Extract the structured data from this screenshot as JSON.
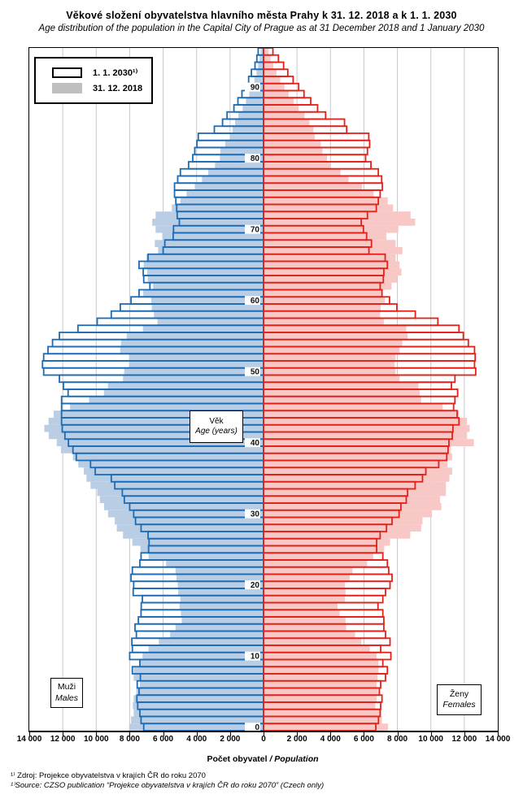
{
  "title": "Věkové složení obyvatelstva hlavního města Prahy k 31. 12. 2018 a k 1. 1. 2030",
  "subtitle": "Age distribution of the population in the Capital City of Prague as at 31 December 2018 and 1 January 2030",
  "legend": {
    "items": [
      {
        "label": "1. 1. 2030¹⁾",
        "swatch": "outline"
      },
      {
        "label": "31. 12. 2018",
        "swatch": "fill"
      }
    ]
  },
  "side_labels": {
    "males_cs": "Muži",
    "males_en": "Males",
    "females_cs": "Ženy",
    "females_en": "Females"
  },
  "center_label": {
    "cs": "Věk",
    "en": "Age (years)"
  },
  "x_axis": {
    "ticks": [
      "14 000",
      "12 000",
      "10 000",
      "8 000",
      "6 000",
      "4 000",
      "2 000",
      "0",
      "2 000",
      "4 000",
      "6 000",
      "8 000",
      "10 000",
      "12 000",
      "14 000"
    ],
    "label_cs": "Počet obyvatel ",
    "label_en": "/ Population"
  },
  "y_axis": {
    "ticks": [
      "0",
      "10",
      "20",
      "30",
      "40",
      "50",
      "60",
      "70",
      "80",
      "90"
    ]
  },
  "footnotes": [
    "¹⁾ Zdroj: Projekce obyvatelstva v krajích ČR do roku 2070",
    "¹⁾Source: CZSO publication “Projekce obyvatelstva v krajích ČR do roku 2070” (Czech only)"
  ],
  "colors": {
    "male_stroke": "#1b6cb5",
    "male_fill": "#b9cde5",
    "female_stroke": "#e32119",
    "female_fill": "#f7c8c6",
    "grid": "#c9c9c9",
    "axis": "#000000",
    "legend_fill_swatch": "#bfbfbf"
  },
  "chart_data": {
    "type": "bar",
    "subtype": "population-pyramid",
    "title": "Věkové složení obyvatelstva hlavního města Prahy k 31. 12. 2018 a k 1. 1. 2030",
    "xlabel": "Počet obyvatel / Population",
    "ylabel": "Věk / Age (years)",
    "xlim": [
      -14000,
      14000
    ],
    "grid": true,
    "age_range": [
      0,
      95
    ],
    "ages_note": "index of each value = single year of age, 0 to 95",
    "series": [
      {
        "name": "males_2018",
        "side": "left",
        "style": "fill",
        "values": [
          8030,
          7920,
          7760,
          7810,
          7760,
          7600,
          7390,
          7760,
          7760,
          7360,
          7230,
          6870,
          6260,
          5580,
          5260,
          4890,
          4940,
          5020,
          4970,
          5100,
          5130,
          5210,
          5260,
          5820,
          6870,
          7360,
          7840,
          8400,
          8770,
          8890,
          9290,
          9530,
          9780,
          9940,
          10340,
          10580,
          10740,
          11070,
          11390,
          12110,
          12360,
          12840,
          13100,
          12850,
          12540,
          11560,
          10430,
          9540,
          9300,
          8400,
          8330,
          8040,
          8040,
          8570,
          8520,
          8180,
          7210,
          6340,
          6550,
          6680,
          6710,
          7190,
          6600,
          6920,
          6950,
          7160,
          7000,
          6300,
          6500,
          6050,
          6450,
          6650,
          6450,
          5480,
          4970,
          4600,
          4110,
          3680,
          3310,
          2900,
          2610,
          2580,
          2290,
          2000,
          1850,
          1700,
          1500,
          1250,
          1050,
          850,
          700,
          550,
          420,
          320,
          230,
          170
        ]
      },
      {
        "name": "males_2030",
        "side": "left",
        "style": "outline",
        "values": [
          7160,
          7320,
          7390,
          7520,
          7570,
          7440,
          7550,
          7360,
          7840,
          7390,
          8000,
          7840,
          7870,
          7600,
          7680,
          7480,
          7320,
          7310,
          7240,
          7790,
          7760,
          7920,
          7840,
          7390,
          7320,
          6870,
          6840,
          6900,
          7320,
          7650,
          7760,
          8000,
          8320,
          8440,
          8890,
          9100,
          10060,
          10340,
          11190,
          11390,
          11660,
          11870,
          12030,
          12070,
          12070,
          12070,
          12070,
          11680,
          11960,
          12200,
          13140,
          13210,
          13140,
          12880,
          12610,
          12200,
          11090,
          9940,
          9100,
          8560,
          7920,
          7440,
          6790,
          7160,
          7190,
          7440,
          6900,
          6000,
          5900,
          5400,
          5380,
          5030,
          5160,
          5190,
          5240,
          5320,
          5320,
          5130,
          4970,
          4480,
          4230,
          4110,
          3980,
          3900,
          2940,
          2450,
          2180,
          1770,
          1530,
          1290,
          1050,
          890,
          725,
          510,
          400,
          320
        ]
      },
      {
        "name": "females_2018",
        "side": "right",
        "style": "fill",
        "values": [
          7440,
          7080,
          7030,
          6680,
          6760,
          6840,
          6760,
          6810,
          6870,
          6870,
          6760,
          6350,
          5840,
          5470,
          4940,
          4900,
          4550,
          4420,
          4870,
          4900,
          4870,
          5150,
          5310,
          6190,
          6550,
          7210,
          7560,
          8770,
          9420,
          9500,
          10060,
          10630,
          10550,
          10900,
          10900,
          11110,
          11270,
          11000,
          11270,
          11190,
          12570,
          12160,
          12320,
          12160,
          11680,
          10710,
          9420,
          9340,
          9260,
          8130,
          7890,
          7840,
          7890,
          8130,
          8290,
          8610,
          8530,
          7190,
          6970,
          7000,
          7240,
          7100,
          7650,
          8000,
          8240,
          8130,
          7900,
          8300,
          7900,
          7340,
          8060,
          9060,
          8790,
          7740,
          7420,
          6580,
          5890,
          5080,
          4600,
          4000,
          3790,
          3520,
          3420,
          3060,
          2980,
          2740,
          2450,
          2100,
          1800,
          1500,
          1250,
          1000,
          780,
          580,
          420,
          300
        ]
      },
      {
        "name": "females_2030",
        "side": "right",
        "style": "outline",
        "values": [
          6710,
          6870,
          6970,
          7000,
          7080,
          6920,
          7000,
          7290,
          7400,
          7130,
          7610,
          7000,
          7560,
          7290,
          7190,
          7190,
          7130,
          6840,
          7130,
          7290,
          7560,
          7680,
          7480,
          7400,
          7130,
          6760,
          6760,
          6970,
          7350,
          7680,
          8100,
          8210,
          8530,
          8610,
          9060,
          9500,
          9700,
          10470,
          10950,
          11030,
          11080,
          11280,
          11320,
          11680,
          11570,
          11360,
          11440,
          11600,
          11230,
          11440,
          12680,
          12610,
          12650,
          12610,
          12240,
          11940,
          11680,
          10420,
          9070,
          7970,
          7530,
          7080,
          6970,
          7160,
          7190,
          7400,
          7270,
          6300,
          6450,
          6160,
          5970,
          5840,
          6210,
          6740,
          6860,
          6970,
          7100,
          7060,
          6860,
          6420,
          6100,
          6210,
          6340,
          6290,
          4970,
          4840,
          3710,
          3230,
          2820,
          2420,
          2100,
          1770,
          1450,
          1200,
          890,
          560
        ]
      }
    ],
    "legend_entries": [
      "1. 1. 2030 (projection, outlined bars)",
      "31. 12. 2018 (filled bars)"
    ]
  }
}
